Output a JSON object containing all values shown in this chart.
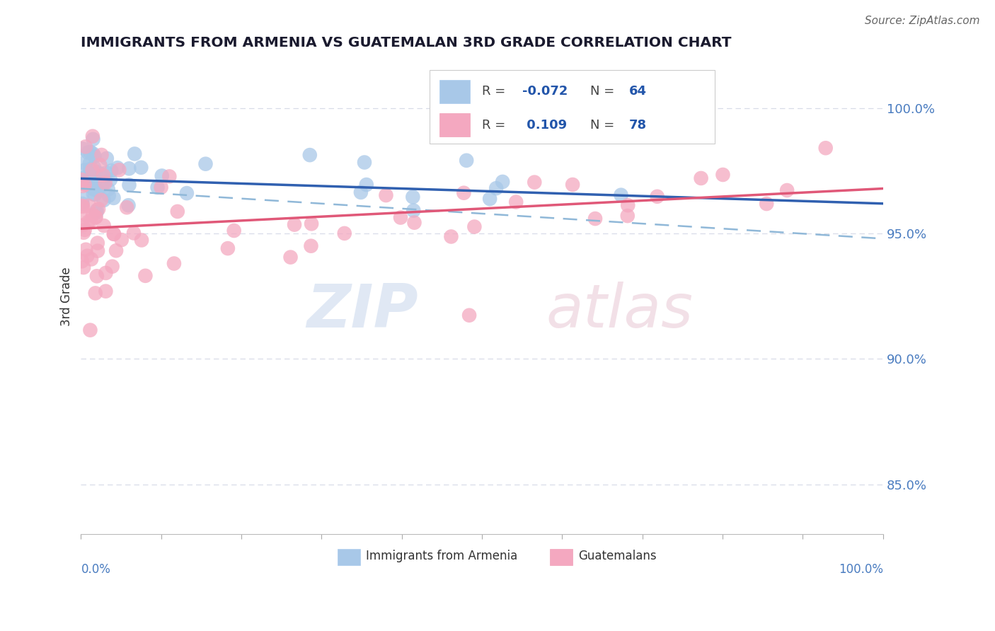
{
  "title": "IMMIGRANTS FROM ARMENIA VS GUATEMALAN 3RD GRADE CORRELATION CHART",
  "source": "Source: ZipAtlas.com",
  "ylabel": "3rd Grade",
  "right_yticks": [
    85.0,
    90.0,
    95.0,
    100.0
  ],
  "xlim": [
    0.0,
    100.0
  ],
  "ylim": [
    83.0,
    102.0
  ],
  "armenia_R": -0.072,
  "armenia_N": 64,
  "guatemalan_R": 0.109,
  "guatemalan_N": 78,
  "armenia_color": "#a8c8e8",
  "guatemalan_color": "#f4a8c0",
  "armenia_line_color": "#3060b0",
  "guatemalan_line_color": "#e05878",
  "ci_line_color": "#90b8d8",
  "grid_color": "#d8dce8",
  "background_color": "#ffffff",
  "arm_line_start_y": 97.2,
  "arm_line_end_y": 96.2,
  "guat_line_start_y": 95.2,
  "guat_line_end_y": 96.8,
  "ci_line_start_y": 96.8,
  "ci_line_end_y": 94.8
}
